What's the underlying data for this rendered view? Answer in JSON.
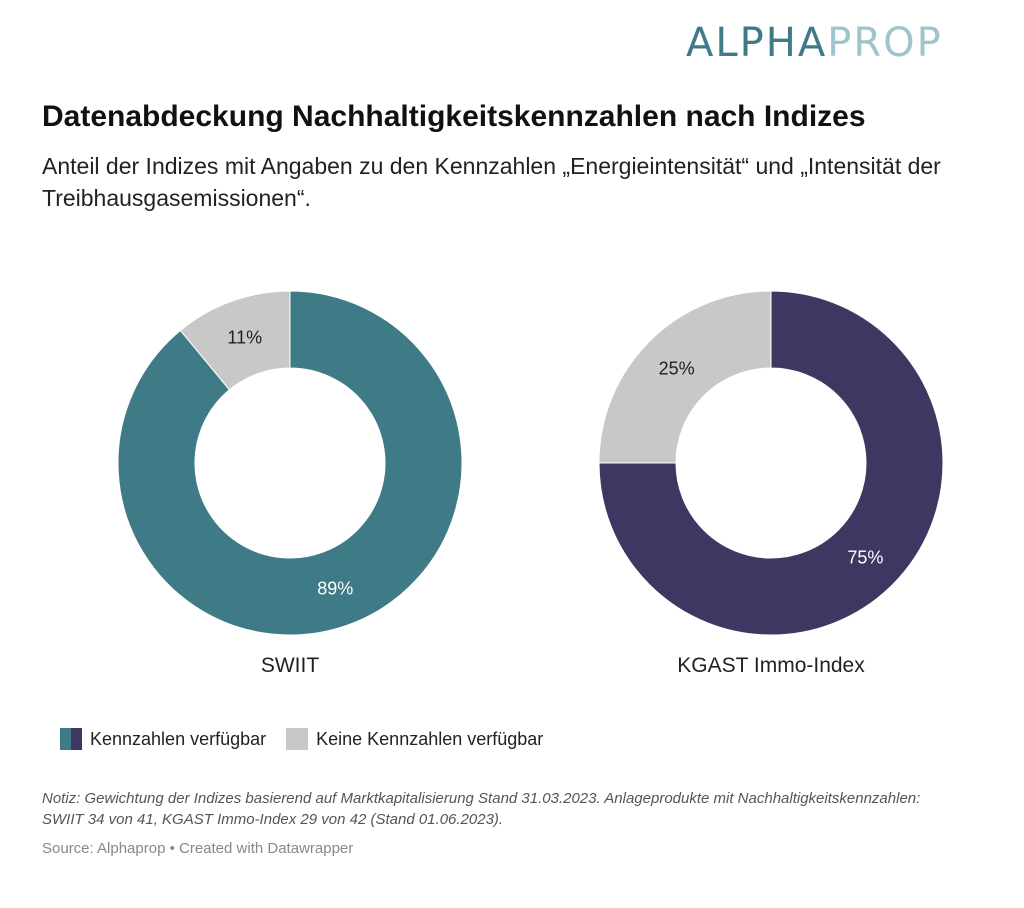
{
  "brand": {
    "logo_part1": "ALPHA",
    "logo_part2": "PROP",
    "logo_color1": "#3e7b87",
    "logo_color2": "#9fc4cb"
  },
  "header": {
    "title": "Datenabdeckung Nachhaltigkeitskennzahlen nach Indizes",
    "subtitle": "Anteil der Indizes mit Angaben zu den Kennzahlen „Energieintensität“ und „Intensität der Treibhausgasemissionen“."
  },
  "chart_data": [
    {
      "type": "pie",
      "donut": true,
      "title": "SWIIT",
      "categories": [
        "Kennzahlen verfügbar",
        "Keine Kennzahlen verfügbar"
      ],
      "values": [
        89,
        11
      ],
      "labels": [
        "89%",
        "11%"
      ],
      "colors": [
        "#3e7b87",
        "#c8c8c8"
      ]
    },
    {
      "type": "pie",
      "donut": true,
      "title": "KGAST Immo-Index",
      "categories": [
        "Kennzahlen verfügbar",
        "Keine Kennzahlen verfügbar"
      ],
      "values": [
        75,
        25
      ],
      "labels": [
        "75%",
        "25%"
      ],
      "colors": [
        "#403662",
        "#c8c8c8"
      ]
    }
  ],
  "legend": {
    "items": [
      {
        "label": "Kennzahlen verfügbar",
        "colors": [
          "#3e7b87",
          "#403662"
        ]
      },
      {
        "label": "Keine Kennzahlen verfügbar",
        "colors": [
          "#c8c8c8"
        ]
      }
    ],
    "placement": "bottom-left"
  },
  "footer": {
    "note": "Notiz: Gewichtung der Indizes basierend auf Marktkapitalisierung Stand 31.03.2023. Anlageprodukte mit Nachhaltigkeitskennzahlen: SWIIT 34 von 41, KGAST Immo-Index 29 von 42 (Stand 01.06.2023).",
    "source": "Source: Alphaprop • Created with Datawrapper"
  }
}
